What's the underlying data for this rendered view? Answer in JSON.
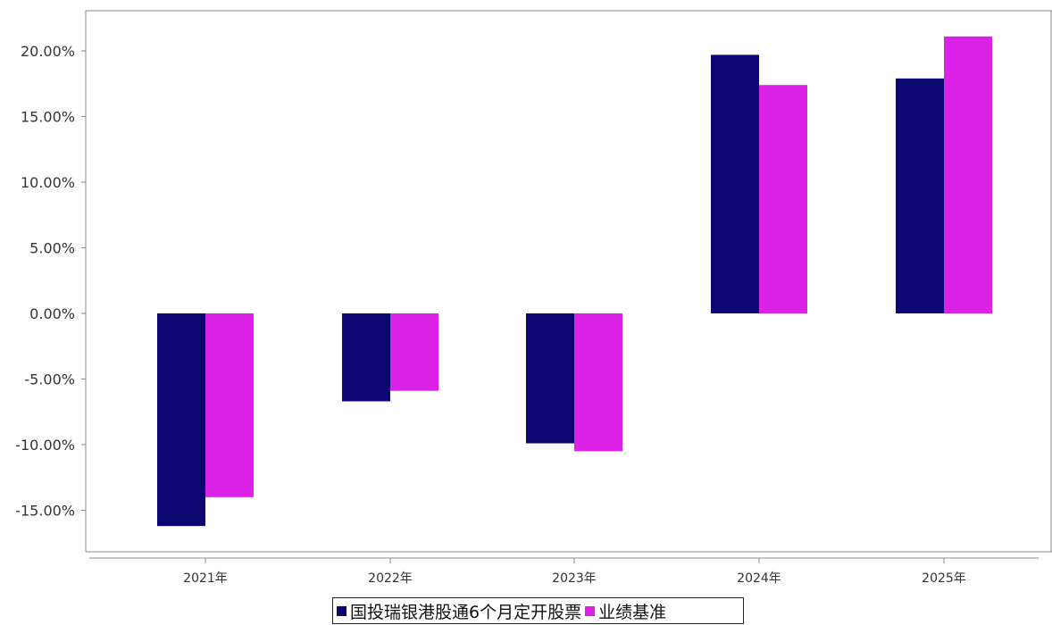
{
  "chart_data": {
    "type": "bar",
    "title": "",
    "xlabel": "",
    "ylabel": "",
    "categories": [
      "2021年",
      "2022年",
      "2023年",
      "2024年",
      "2025年"
    ],
    "series": [
      {
        "name": "国投瑞银港股通6个月定开股票",
        "color": "#0b0670",
        "values": [
          -16.2,
          -6.7,
          -9.9,
          19.7,
          17.9
        ]
      },
      {
        "name": "业绩基准",
        "color": "#dd22e8",
        "values": [
          -14.0,
          -5.9,
          -10.5,
          17.4,
          21.1
        ]
      }
    ],
    "ylim": [
      -18,
      23
    ],
    "yticks": [
      20,
      15,
      10,
      5,
      0,
      -5,
      -10,
      -15
    ],
    "ytick_labels": [
      "20.00%",
      "15.00%",
      "10.00%",
      "5.00%",
      "0.00%",
      "-5.00%",
      "-10.00%",
      "-15.00%"
    ],
    "grid": false,
    "legend_position": "bottom-center"
  }
}
